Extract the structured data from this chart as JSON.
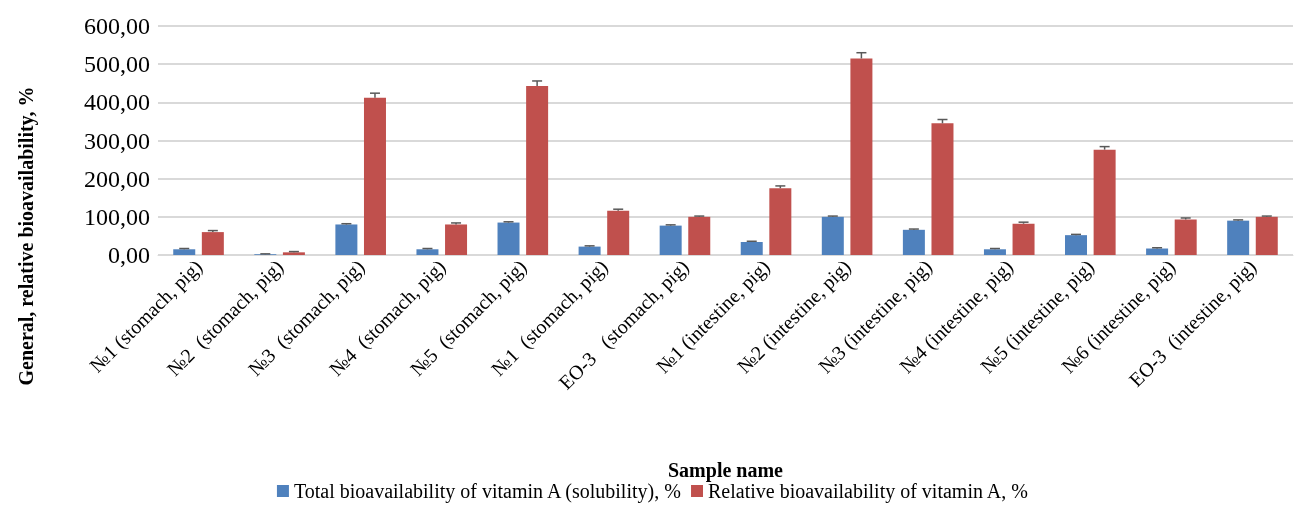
{
  "chart_data": {
    "type": "bar",
    "xlabel": "Sample name",
    "ylabel": "General, relative bioavailability, %",
    "categories": [
      "№1 (stomach, pig)",
      "№2  (stomach, pig)",
      "№3  (stomach, pig)",
      "№4  (stomach, pig)",
      "№5  (stomach, pig)",
      "№1  (stomach, pig)",
      "EO-3   (stomach, pig)",
      "№1 (intestine, pig)",
      "№2 (intestine, pig)",
      "№3 (intestine, pig)",
      "№4 (intestine, pig)",
      "№5 (intestine, pig)",
      "№6 (intestine, pig)",
      "EO-3  (intestine, pig)"
    ],
    "series": [
      {
        "name": "Total bioavailability of vitamin A (solubility), %",
        "color": "#4f81bd",
        "values": [
          15,
          2,
          80,
          15,
          85,
          22,
          77,
          34,
          100,
          66,
          15,
          52,
          17,
          90
        ],
        "errors": [
          2,
          1,
          2,
          2,
          2,
          2,
          2,
          2,
          2,
          2,
          2,
          2,
          2,
          2
        ]
      },
      {
        "name": "Relative bioavailability of vitamin A, %",
        "color": "#c0504d",
        "values": [
          60,
          7,
          412,
          80,
          443,
          116,
          100,
          175,
          515,
          345,
          82,
          276,
          93,
          100
        ],
        "errors": [
          4,
          2,
          12,
          4,
          13,
          4,
          2,
          6,
          15,
          10,
          4,
          8,
          4,
          2
        ]
      }
    ],
    "ylim": [
      0,
      600
    ],
    "yticks": [
      {
        "value": 0,
        "label": "0,00"
      },
      {
        "value": 100,
        "label": "100,00"
      },
      {
        "value": 200,
        "label": "200,00"
      },
      {
        "value": 300,
        "label": "300,00"
      },
      {
        "value": 400,
        "label": "400,00"
      },
      {
        "value": 500,
        "label": "500,00"
      },
      {
        "value": 600,
        "label": "600,00"
      }
    ],
    "grid": "y",
    "legend": "bottom"
  }
}
